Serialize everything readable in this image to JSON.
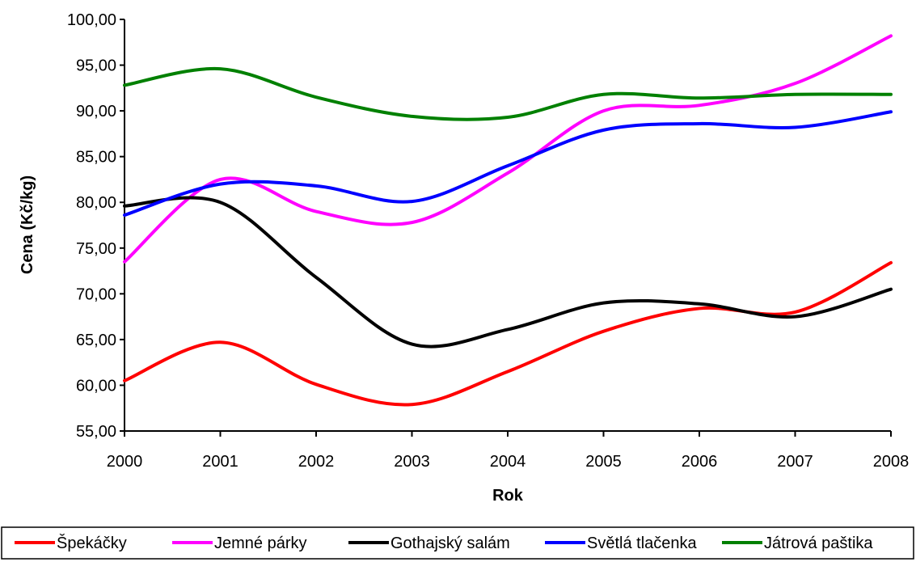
{
  "chart_data": {
    "type": "line",
    "xlabel": "Rok",
    "ylabel": "Cena (Kč/kg)",
    "x": [
      2000,
      2001,
      2002,
      2003,
      2004,
      2005,
      2006,
      2007,
      2008
    ],
    "x_tick_labels": [
      "2000",
      "2001",
      "2002",
      "2003",
      "2004",
      "2005",
      "2006",
      "2007",
      "2008"
    ],
    "ylim": [
      55,
      100
    ],
    "y_tick_labels": [
      "55,00",
      "60,00",
      "65,00",
      "70,00",
      "75,00",
      "80,00",
      "85,00",
      "90,00",
      "95,00",
      "100,00"
    ],
    "grid": false,
    "legend_position": "bottom",
    "series": [
      {
        "name": "Špekáčky",
        "color": "#ff0000",
        "values": [
          60.5,
          64.7,
          60.1,
          57.9,
          61.5,
          65.9,
          68.4,
          68.0,
          73.4
        ]
      },
      {
        "name": "Jemné párky",
        "color": "#ff00ff",
        "values": [
          73.5,
          82.5,
          79.0,
          77.8,
          83.2,
          90.0,
          90.6,
          93.0,
          98.2
        ]
      },
      {
        "name": "Gothajský salám",
        "color": "#000000",
        "values": [
          79.6,
          80.0,
          71.8,
          64.5,
          66.1,
          69.0,
          68.9,
          67.5,
          70.5
        ]
      },
      {
        "name": "Světlá tlačenka",
        "color": "#0000ff",
        "values": [
          78.6,
          82.0,
          81.8,
          80.1,
          84.0,
          87.9,
          88.6,
          88.2,
          89.9
        ]
      },
      {
        "name": "Játrová paštika",
        "color": "#008000",
        "values": [
          92.8,
          94.6,
          91.5,
          89.4,
          89.3,
          91.8,
          91.4,
          91.8,
          91.8
        ]
      }
    ]
  }
}
